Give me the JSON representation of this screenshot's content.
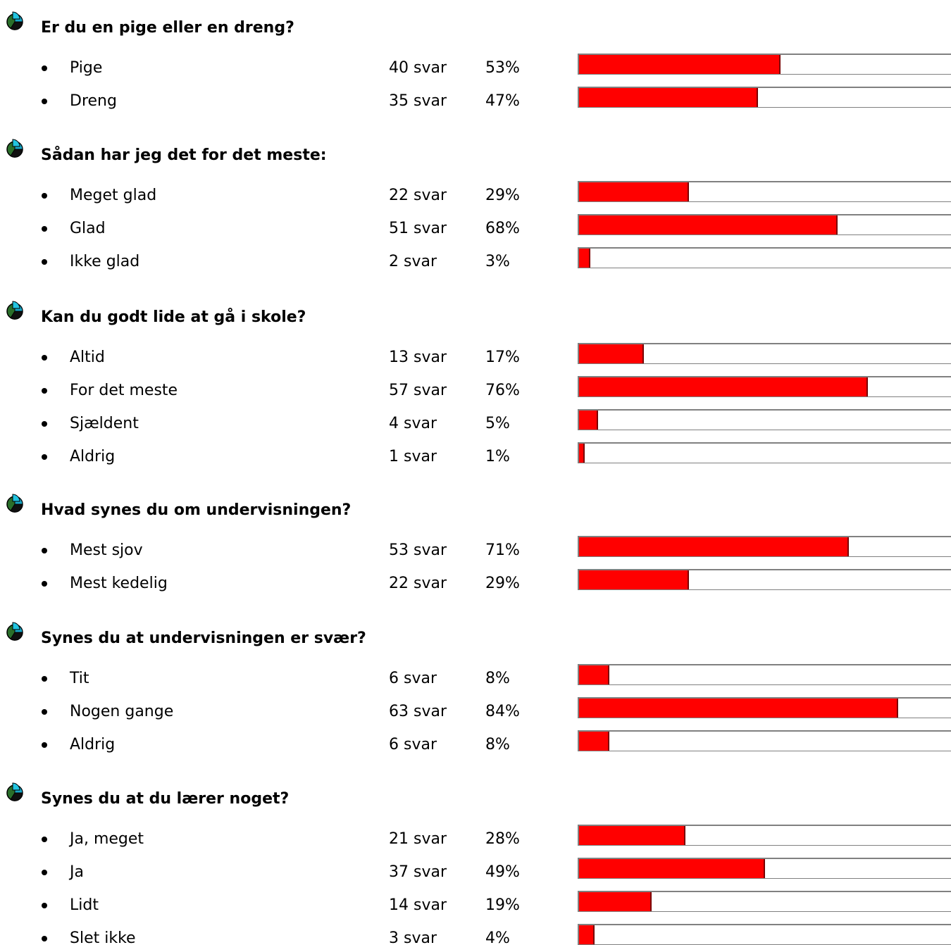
{
  "colors": {
    "bar_fill": "#ff0000",
    "bar_track": "#ffffff",
    "text": "#000000"
  },
  "question_icon": "pie-chart-icon",
  "bar_max_percent": 100,
  "questions": [
    {
      "title": "Er du en pige eller en dreng?",
      "answers": [
        {
          "label": "Pige",
          "count": "40 svar",
          "percent": "53%",
          "value": 53
        },
        {
          "label": "Dreng",
          "count": "35 svar",
          "percent": "47%",
          "value": 47
        }
      ]
    },
    {
      "title": "Sådan har jeg det for det meste:",
      "answers": [
        {
          "label": "Meget glad",
          "count": "22 svar",
          "percent": "29%",
          "value": 29
        },
        {
          "label": "Glad",
          "count": "51 svar",
          "percent": "68%",
          "value": 68
        },
        {
          "label": "Ikke glad",
          "count": "2 svar",
          "percent": "3%",
          "value": 3
        }
      ]
    },
    {
      "title": "Kan du godt lide at gå i skole?",
      "answers": [
        {
          "label": "Altid",
          "count": "13 svar",
          "percent": "17%",
          "value": 17
        },
        {
          "label": "For det meste",
          "count": "57 svar",
          "percent": "76%",
          "value": 76
        },
        {
          "label": "Sjældent",
          "count": "4 svar",
          "percent": "5%",
          "value": 5
        },
        {
          "label": "Aldrig",
          "count": "1 svar",
          "percent": "1%",
          "value": 1
        }
      ]
    },
    {
      "title": "Hvad synes du om undervisningen?",
      "answers": [
        {
          "label": "Mest sjov",
          "count": "53 svar",
          "percent": "71%",
          "value": 71
        },
        {
          "label": "Mest kedelig",
          "count": "22 svar",
          "percent": "29%",
          "value": 29
        }
      ]
    },
    {
      "title": "Synes du at undervisningen er svær?",
      "answers": [
        {
          "label": "Tit",
          "count": "6 svar",
          "percent": "8%",
          "value": 8
        },
        {
          "label": "Nogen gange",
          "count": "63 svar",
          "percent": "84%",
          "value": 84
        },
        {
          "label": "Aldrig",
          "count": "6 svar",
          "percent": "8%",
          "value": 8
        }
      ]
    },
    {
      "title": "Synes du at du lærer noget?",
      "answers": [
        {
          "label": "Ja, meget",
          "count": "21 svar",
          "percent": "28%",
          "value": 28
        },
        {
          "label": "Ja",
          "count": "37 svar",
          "percent": "49%",
          "value": 49
        },
        {
          "label": "Lidt",
          "count": "14 svar",
          "percent": "19%",
          "value": 19
        },
        {
          "label": "Slet ikke",
          "count": "3 svar",
          "percent": "4%",
          "value": 4
        }
      ]
    }
  ]
}
